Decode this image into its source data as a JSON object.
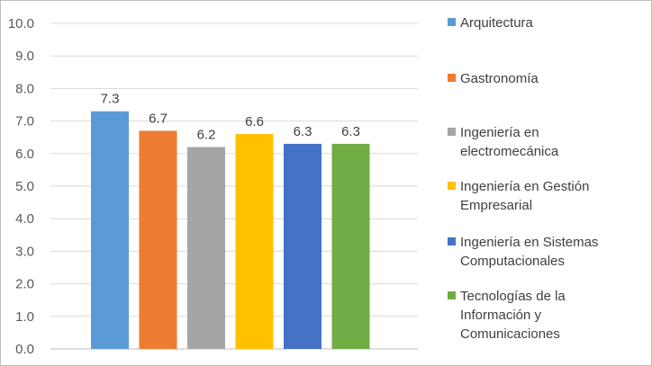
{
  "chart_data": {
    "type": "bar",
    "title": "",
    "xlabel": "",
    "ylabel": "",
    "ylim": [
      0,
      10
    ],
    "yticks": [
      "0.0",
      "1.0",
      "2.0",
      "3.0",
      "4.0",
      "5.0",
      "6.0",
      "7.0",
      "8.0",
      "9.0",
      "10.0"
    ],
    "grid": true,
    "legend_position": "right",
    "categories": [
      "Arquitectura",
      "Gastronomía",
      "Ingeniería en electromecánica",
      "Ingeniería en Gestión Empresarial",
      "Ingeniería en Sistemas Computacionales",
      "Tecnologías de la Información y Comunicaciones"
    ],
    "values": [
      7.3,
      6.7,
      6.2,
      6.6,
      6.3,
      6.3
    ],
    "data_labels": [
      "7.3",
      "6.7",
      "6.2",
      "6.6",
      "6.3",
      "6.3"
    ],
    "colors": [
      "#5b9bd5",
      "#ed7d31",
      "#a5a5a5",
      "#ffc000",
      "#4472c4",
      "#70ad47"
    ],
    "legend": [
      {
        "lines": [
          "Arquitectura"
        ]
      },
      {
        "lines": [
          "Gastronomía"
        ]
      },
      {
        "lines": [
          "Ingeniería en",
          "electromecánica"
        ]
      },
      {
        "lines": [
          "Ingeniería en Gestión",
          "Empresarial"
        ]
      },
      {
        "lines": [
          "Ingeniería en Sistemas",
          "Computacionales"
        ]
      },
      {
        "lines": [
          "Tecnologías de la",
          "Información y",
          "Comunicaciones"
        ]
      }
    ]
  }
}
